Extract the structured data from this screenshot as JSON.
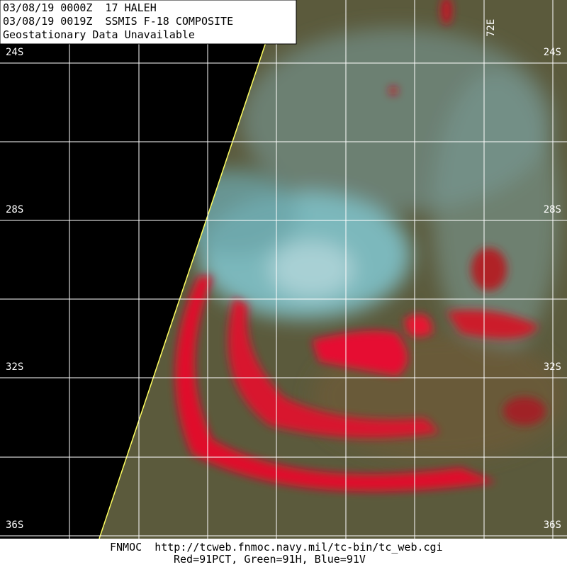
{
  "header": {
    "lines": [
      "03/08/19 0000Z  17 HALEH",
      "03/08/19 0019Z  SSMIS F-18 COMPOSITE",
      "Geostationary Data Unavailable"
    ]
  },
  "latitude_labels": [
    "24S",
    "28S",
    "32S",
    "36S"
  ],
  "longitude_label": "72E",
  "footer": {
    "lines": [
      "FNMOC  http://tcweb.fnmoc.navy.mil/tc-bin/tc_web.cgi",
      "Red=91PCT, Green=91H, Blue=91V"
    ]
  }
}
